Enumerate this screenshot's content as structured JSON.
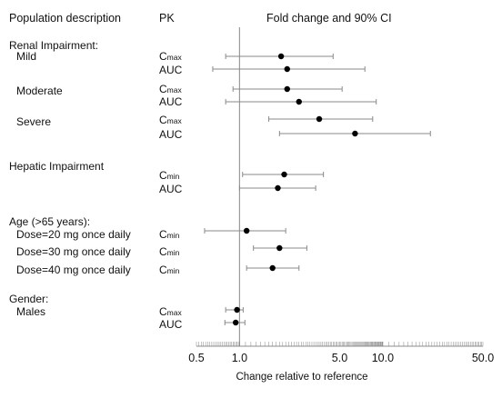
{
  "headers": {
    "population": "Population description",
    "pk": "PK",
    "fold": "Fold change and 90% CI"
  },
  "chart_data": {
    "type": "forest",
    "x_scale": "log",
    "xlim": [
      0.5,
      50.0
    ],
    "reference_line": 1.0,
    "xlabel": "Change relative to reference",
    "xticks": [
      "0.5",
      "1.0",
      "5.0",
      "10.0",
      "50.0"
    ],
    "xtick_values": [
      0.5,
      1.0,
      5.0,
      10.0,
      50.0
    ],
    "groups": [
      {
        "label": "Renal Impairment:"
      },
      {
        "label": "Hepatic Impairment"
      },
      {
        "label": "Age (>65 years):"
      },
      {
        "label": "Gender:"
      }
    ],
    "rows": [
      {
        "sub": "Mild",
        "pk_base": "C",
        "pk_sub": "max",
        "estimate": 1.95,
        "ci": [
          0.8,
          4.5
        ]
      },
      {
        "sub": "",
        "pk_base": "AUC",
        "pk_sub": "",
        "estimate": 2.15,
        "ci": [
          0.65,
          7.5
        ]
      },
      {
        "sub": "Moderate",
        "pk_base": "C",
        "pk_sub": "max",
        "estimate": 2.15,
        "ci": [
          0.9,
          5.2
        ]
      },
      {
        "sub": "",
        "pk_base": "AUC",
        "pk_sub": "",
        "estimate": 2.6,
        "ci": [
          0.8,
          9.0
        ]
      },
      {
        "sub": "Severe",
        "pk_base": "C",
        "pk_sub": "max",
        "estimate": 3.6,
        "ci": [
          1.6,
          8.5
        ]
      },
      {
        "sub": "",
        "pk_base": "AUC",
        "pk_sub": "",
        "estimate": 6.4,
        "ci": [
          1.9,
          21.5
        ]
      },
      {
        "sub": "",
        "pk_base": "C",
        "pk_sub": "min",
        "estimate": 2.05,
        "ci": [
          1.05,
          3.85
        ]
      },
      {
        "sub": "",
        "pk_base": "AUC",
        "pk_sub": "",
        "estimate": 1.85,
        "ci": [
          1.0,
          3.4
        ]
      },
      {
        "sub": "Dose=20 mg once daily",
        "pk_base": "C",
        "pk_sub": "min",
        "estimate": 1.12,
        "ci": [
          0.57,
          2.1
        ]
      },
      {
        "sub": "Dose=30 mg once daily",
        "pk_base": "C",
        "pk_sub": "min",
        "estimate": 1.9,
        "ci": [
          1.25,
          2.95
        ]
      },
      {
        "sub": "Dose=40 mg once daily",
        "pk_base": "C",
        "pk_sub": "min",
        "estimate": 1.7,
        "ci": [
          1.12,
          2.6
        ]
      },
      {
        "sub": "Males",
        "pk_base": "C",
        "pk_sub": "max",
        "estimate": 0.96,
        "ci": [
          0.8,
          1.06
        ]
      },
      {
        "sub": "",
        "pk_base": "AUC",
        "pk_sub": "",
        "estimate": 0.94,
        "ci": [
          0.79,
          1.09
        ]
      }
    ]
  }
}
